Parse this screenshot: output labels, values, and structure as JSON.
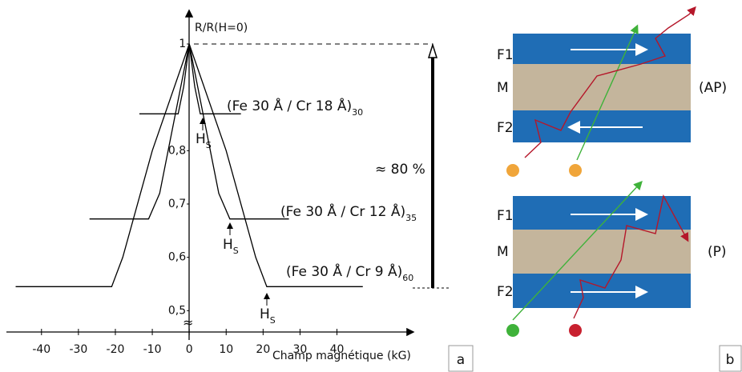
{
  "chart_data": {
    "type": "line",
    "y_label": "R/R(H=0)",
    "x_label": "Champ magnétique (kG)",
    "xlim": [
      -49.5,
      60.5
    ],
    "xticks": [
      -40,
      -30,
      -20,
      -10,
      0,
      10,
      20,
      30,
      40
    ],
    "ylim": [
      0.46,
      1.06
    ],
    "yticks": [
      {
        "value": 0.5,
        "label": "0,5"
      },
      {
        "value": 0.6,
        "label": "0,6"
      },
      {
        "value": 0.7,
        "label": "0,7"
      },
      {
        "value": 0.8,
        "label": "0,8"
      },
      {
        "value": 1,
        "label": "1"
      }
    ],
    "series": [
      {
        "name": "(Fe 30 Å / Cr 18 Å)",
        "subscript": "30",
        "color": "#000000",
        "x": [
          -13.5,
          -3,
          -1.5,
          0,
          1.5,
          3,
          14
        ],
        "values": [
          0.869,
          0.869,
          0.92,
          1,
          0.92,
          0.869,
          0.869
        ]
      },
      {
        "name": "(Fe 30 Å / Cr 12 Å)",
        "subscript": "35",
        "color": "#000000",
        "x": [
          -27,
          -11,
          -8,
          0,
          8,
          11,
          27
        ],
        "values": [
          0.672,
          0.672,
          0.72,
          1,
          0.72,
          0.672,
          0.672
        ]
      },
      {
        "name": "(Fe 30 Å / Cr 9 Å)",
        "subscript": "60",
        "color": "#000000",
        "x": [
          -47,
          -21,
          -18,
          -10,
          0,
          10,
          18,
          21,
          47
        ],
        "values": [
          0.545,
          0.545,
          0.6,
          0.8,
          1,
          0.8,
          0.6,
          0.545,
          0.545
        ]
      }
    ],
    "saturation_label": "H",
    "saturation_subscript": "S",
    "amplitude_label": "≈ 80 %",
    "panel_label": "a"
  },
  "panel_b": {
    "panel_label": "b",
    "ap": {
      "layers": [
        "F1",
        "M",
        "F2"
      ],
      "label": "(AP)"
    },
    "p": {
      "layers": [
        "F1",
        "M",
        "F2"
      ],
      "label": "(P)"
    }
  }
}
